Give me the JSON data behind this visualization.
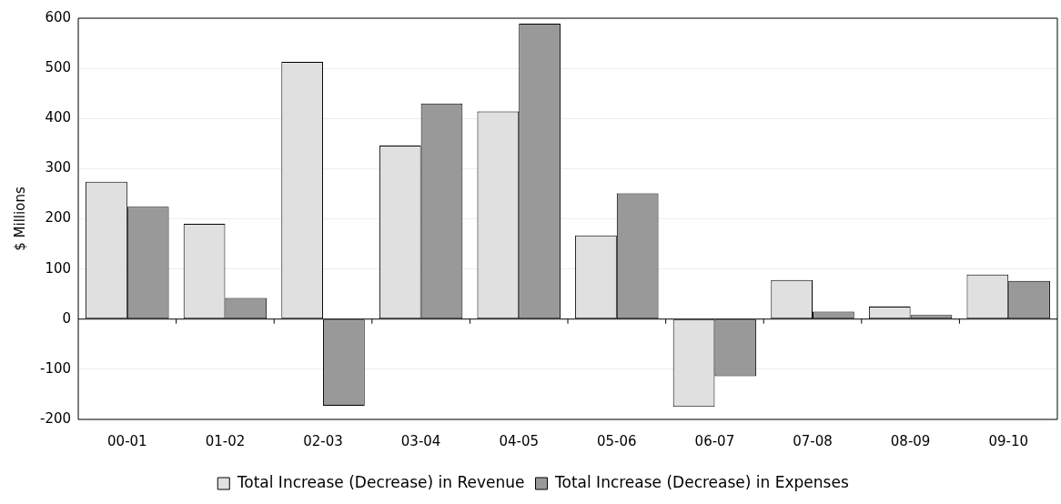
{
  "chart_data": {
    "type": "bar",
    "ylabel": "$ Millions",
    "categories": [
      "00-01",
      "01-02",
      "02-03",
      "03-04",
      "04-05",
      "05-06",
      "06-07",
      "07-08",
      "08-09",
      "09-10"
    ],
    "series": [
      {
        "name": "Total Increase (Decrease) in Revenue",
        "color": "#e0e0e0",
        "values": [
          274,
          190,
          513,
          346,
          414,
          167,
          -175,
          78,
          25,
          89
        ]
      },
      {
        "name": "Total Increase (Decrease) in Expenses",
        "color": "#999999",
        "values": [
          224,
          42,
          -173,
          430,
          589,
          251,
          -114,
          15,
          8,
          76
        ]
      }
    ],
    "ylim": [
      -200,
      600
    ],
    "yticks": [
      -200,
      -100,
      0,
      100,
      200,
      300,
      400,
      500,
      600
    ],
    "grid": "y",
    "legend": "bottom"
  }
}
